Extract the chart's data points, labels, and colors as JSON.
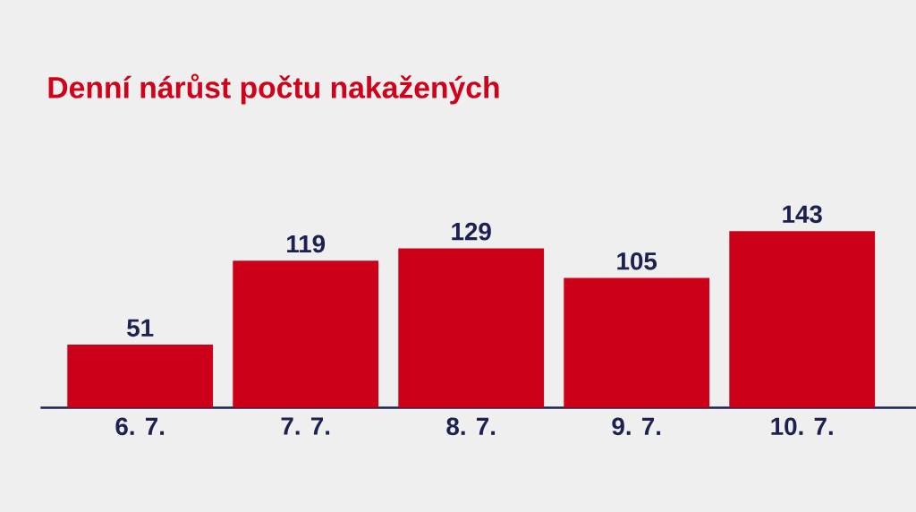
{
  "chart_data": {
    "type": "bar",
    "title": "Denní nárůst počtu nakažených",
    "categories": [
      "6. 7.",
      "7. 7.",
      "8. 7.",
      "9. 7.",
      "10. 7."
    ],
    "values": [
      51,
      119,
      129,
      105,
      143
    ],
    "color": "#cc0019",
    "tick_labels": "x",
    "data_labels": true
  }
}
